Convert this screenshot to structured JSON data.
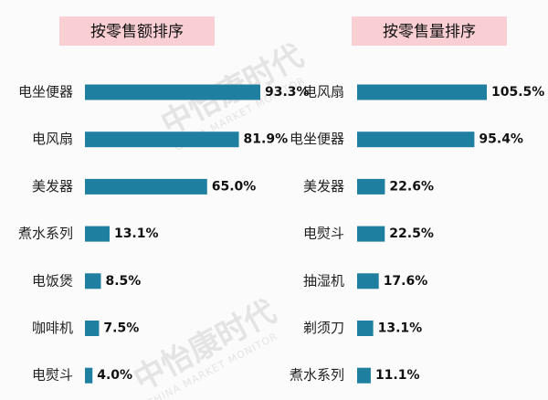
{
  "chart_data": [
    {
      "type": "bar",
      "title": "按零售额排序",
      "categories": [
        "电坐便器",
        "电风扇",
        "美发器",
        "煮水系列",
        "电饭煲",
        "咖啡机",
        "电熨斗"
      ],
      "values": [
        93.3,
        81.9,
        65.0,
        13.1,
        8.5,
        7.5,
        4.0
      ],
      "value_labels": [
        "93.3%",
        "81.9%",
        "65.0%",
        "13.1%",
        "8.5%",
        "7.5%",
        "4.0%"
      ],
      "color": "#1f7fa1"
    },
    {
      "type": "bar",
      "title": "按零售量排序",
      "categories": [
        "电风扇",
        "电坐便器",
        "美发器",
        "电熨斗",
        "抽湿机",
        "剃须刀",
        "煮水系列"
      ],
      "values": [
        105.5,
        95.4,
        22.6,
        22.5,
        17.6,
        13.1,
        11.1
      ],
      "value_labels": [
        "105.5%",
        "95.4%",
        "22.6%",
        "22.5%",
        "17.6%",
        "13.1%",
        "11.1%"
      ],
      "color": "#1f7fa1"
    }
  ],
  "watermark": {
    "text": "中怡康时代",
    "subtext": "CHINA MARKET MONITOR"
  }
}
